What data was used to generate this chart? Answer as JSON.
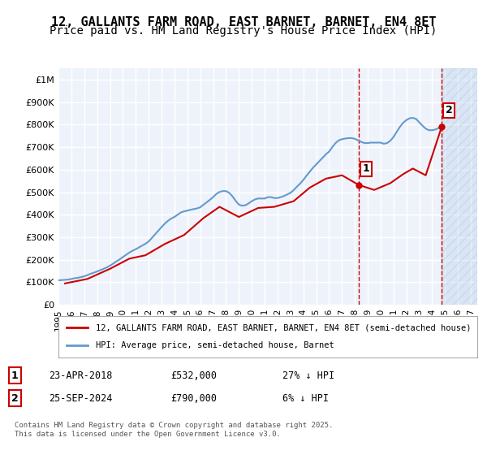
{
  "title": "12, GALLANTS FARM ROAD, EAST BARNET, BARNET, EN4 8ET",
  "subtitle": "Price paid vs. HM Land Registry's House Price Index (HPI)",
  "title_fontsize": 11,
  "subtitle_fontsize": 10,
  "background_color": "#ffffff",
  "plot_bg_color": "#eef3fb",
  "grid_color": "#ffffff",
  "hpi_color": "#6699cc",
  "price_color": "#cc0000",
  "dashed_line_color": "#cc0000",
  "ylim": [
    0,
    1050000
  ],
  "yticks": [
    0,
    100000,
    200000,
    300000,
    400000,
    500000,
    600000,
    700000,
    800000,
    900000,
    1000000
  ],
  "ytick_labels": [
    "£0",
    "£100K",
    "£200K",
    "£300K",
    "£400K",
    "£500K",
    "£600K",
    "£700K",
    "£800K",
    "£900K",
    "£1M"
  ],
  "xlim_start": 1995.0,
  "xlim_end": 2027.5,
  "xticks": [
    1995,
    1996,
    1997,
    1998,
    1999,
    2000,
    2001,
    2002,
    2003,
    2004,
    2005,
    2006,
    2007,
    2008,
    2009,
    2010,
    2011,
    2012,
    2013,
    2014,
    2015,
    2016,
    2017,
    2018,
    2019,
    2020,
    2021,
    2022,
    2023,
    2024,
    2025,
    2026,
    2027
  ],
  "sale1_x": 2018.31,
  "sale1_y": 532000,
  "sale1_label": "1",
  "sale2_x": 2024.74,
  "sale2_y": 790000,
  "sale2_label": "2",
  "legend_line1": "12, GALLANTS FARM ROAD, EAST BARNET, BARNET, EN4 8ET (semi-detached house)",
  "legend_line2": "HPI: Average price, semi-detached house, Barnet",
  "footer1": "Contains HM Land Registry data © Crown copyright and database right 2025.",
  "footer2": "This data is licensed under the Open Government Licence v3.0.",
  "annotation1_date": "23-APR-2018",
  "annotation1_price": "£532,000",
  "annotation1_hpi": "27% ↓ HPI",
  "annotation2_date": "25-SEP-2024",
  "annotation2_price": "£790,000",
  "annotation2_hpi": "6% ↓ HPI",
  "hpi_data_x": [
    1995.0,
    1995.25,
    1995.5,
    1995.75,
    1996.0,
    1996.25,
    1996.5,
    1996.75,
    1997.0,
    1997.25,
    1997.5,
    1997.75,
    1998.0,
    1998.25,
    1998.5,
    1998.75,
    1999.0,
    1999.25,
    1999.5,
    1999.75,
    2000.0,
    2000.25,
    2000.5,
    2000.75,
    2001.0,
    2001.25,
    2001.5,
    2001.75,
    2002.0,
    2002.25,
    2002.5,
    2002.75,
    2003.0,
    2003.25,
    2003.5,
    2003.75,
    2004.0,
    2004.25,
    2004.5,
    2004.75,
    2005.0,
    2005.25,
    2005.5,
    2005.75,
    2006.0,
    2006.25,
    2006.5,
    2006.75,
    2007.0,
    2007.25,
    2007.5,
    2007.75,
    2008.0,
    2008.25,
    2008.5,
    2008.75,
    2009.0,
    2009.25,
    2009.5,
    2009.75,
    2010.0,
    2010.25,
    2010.5,
    2010.75,
    2011.0,
    2011.25,
    2011.5,
    2011.75,
    2012.0,
    2012.25,
    2012.5,
    2012.75,
    2013.0,
    2013.25,
    2013.5,
    2013.75,
    2014.0,
    2014.25,
    2014.5,
    2014.75,
    2015.0,
    2015.25,
    2015.5,
    2015.75,
    2016.0,
    2016.25,
    2016.5,
    2016.75,
    2017.0,
    2017.25,
    2017.5,
    2017.75,
    2018.0,
    2018.25,
    2018.5,
    2018.75,
    2019.0,
    2019.25,
    2019.5,
    2019.75,
    2020.0,
    2020.25,
    2020.5,
    2020.75,
    2021.0,
    2021.25,
    2021.5,
    2021.75,
    2022.0,
    2022.25,
    2022.5,
    2022.75,
    2023.0,
    2023.25,
    2023.5,
    2023.75,
    2024.0,
    2024.25,
    2024.5,
    2024.75
  ],
  "hpi_data_y": [
    109000,
    110000,
    111000,
    112000,
    115000,
    118000,
    120000,
    123000,
    127000,
    132000,
    138000,
    143000,
    148000,
    154000,
    160000,
    166000,
    174000,
    183000,
    193000,
    202000,
    212000,
    222000,
    232000,
    240000,
    247000,
    255000,
    263000,
    271000,
    281000,
    297000,
    313000,
    329000,
    345000,
    360000,
    373000,
    383000,
    390000,
    400000,
    410000,
    415000,
    418000,
    422000,
    425000,
    428000,
    433000,
    444000,
    455000,
    466000,
    478000,
    492000,
    501000,
    505000,
    505000,
    497000,
    482000,
    462000,
    445000,
    440000,
    442000,
    450000,
    460000,
    468000,
    472000,
    472000,
    472000,
    478000,
    478000,
    474000,
    474000,
    478000,
    483000,
    490000,
    497000,
    509000,
    524000,
    538000,
    554000,
    573000,
    591000,
    608000,
    623000,
    638000,
    653000,
    668000,
    680000,
    700000,
    718000,
    730000,
    735000,
    738000,
    740000,
    740000,
    737000,
    730000,
    723000,
    718000,
    718000,
    720000,
    720000,
    720000,
    720000,
    715000,
    718000,
    728000,
    745000,
    768000,
    790000,
    808000,
    820000,
    828000,
    830000,
    825000,
    810000,
    795000,
    782000,
    775000,
    775000,
    778000,
    785000,
    795000
  ],
  "price_data_x": [
    1995.5,
    1997.25,
    1999.0,
    2000.5,
    2001.75,
    2003.25,
    2004.75,
    2006.25,
    2007.5,
    2009.0,
    2010.5,
    2011.75,
    2013.25,
    2014.5,
    2015.75,
    2017.0,
    2018.31,
    2019.5,
    2020.75,
    2021.75,
    2022.5,
    2023.5,
    2024.74
  ],
  "price_data_y": [
    95000,
    115000,
    160000,
    205000,
    220000,
    270000,
    310000,
    385000,
    435000,
    390000,
    430000,
    435000,
    460000,
    520000,
    560000,
    575000,
    532000,
    510000,
    540000,
    580000,
    605000,
    575000,
    790000
  ]
}
